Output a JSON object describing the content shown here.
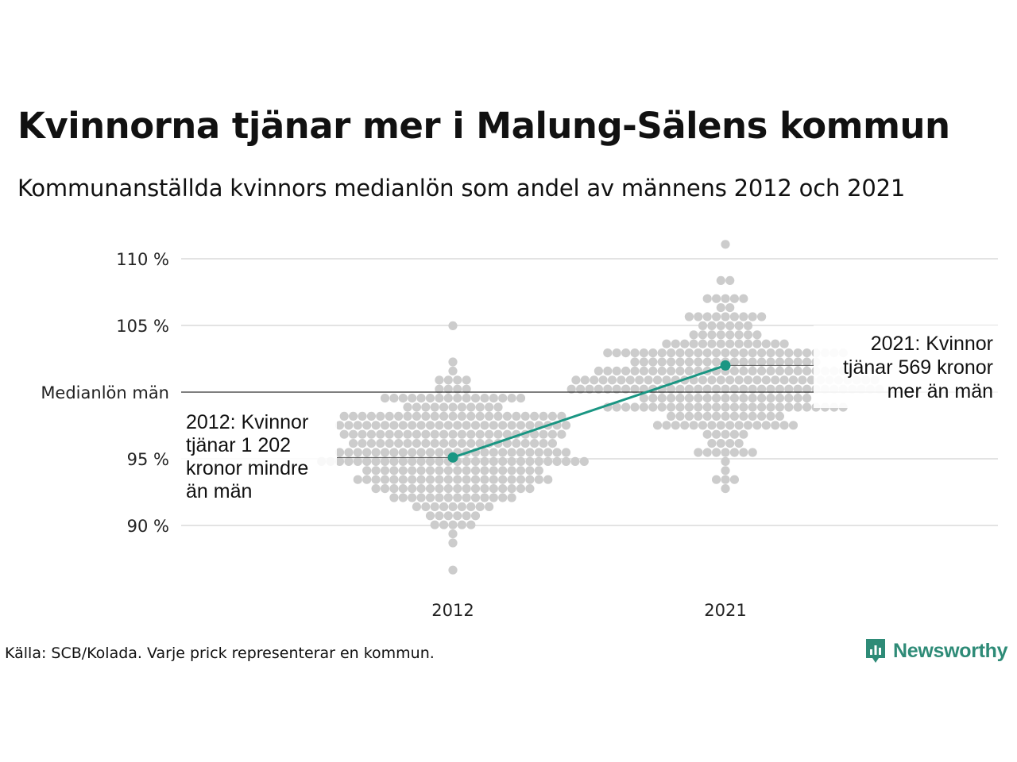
{
  "title": "Kvinnorna tjänar mer i Malung-Sälens kommun",
  "subtitle": "Kommunanställda kvinnors medianlön som andel av männens 2012 och 2021",
  "source": "Källa: SCB/Kolada. Varje prick representerar en kommun.",
  "logo_text": "Newsworthy",
  "colors": {
    "highlight": "#1a9683",
    "dots": "#cccccc",
    "grid": "#e3e3e3",
    "reference": "#333333"
  },
  "chart_data": {
    "type": "scatter",
    "title": "Kvinnorna tjänar mer i Malung-Sälens kommun",
    "subtitle": "Kommunanställda kvinnors medianlön som andel av männens 2012 och 2021",
    "categories": [
      "2012",
      "2021"
    ],
    "ylim": [
      86,
      111
    ],
    "yticks": [
      90,
      95,
      105,
      110
    ],
    "ytick_labels": [
      "90 %",
      "95 %",
      "105 %",
      "110 %"
    ],
    "reference": {
      "value": 100,
      "label": "Medianlön män"
    },
    "highlight": {
      "name": "Malung-Sälen",
      "values": [
        95.1,
        102.0
      ]
    },
    "annotations": [
      {
        "category": "2012",
        "lines": [
          "2012: Kvinnor",
          "tjänar 1 202",
          "kronor mindre",
          "än män"
        ]
      },
      {
        "category": "2021",
        "lines": [
          "2021: Kvinnor",
          "tjänar 569 kronor",
          "mer än män"
        ]
      }
    ],
    "distribution": [
      {
        "category": "2012",
        "mean": 95.5,
        "sd": 2.7,
        "count": 290,
        "min": 86.5,
        "max": 105.2
      },
      {
        "category": "2021",
        "mean": 101.0,
        "sd": 2.6,
        "count": 290,
        "min": 92.6,
        "max": 111.3
      }
    ],
    "grid": true
  }
}
